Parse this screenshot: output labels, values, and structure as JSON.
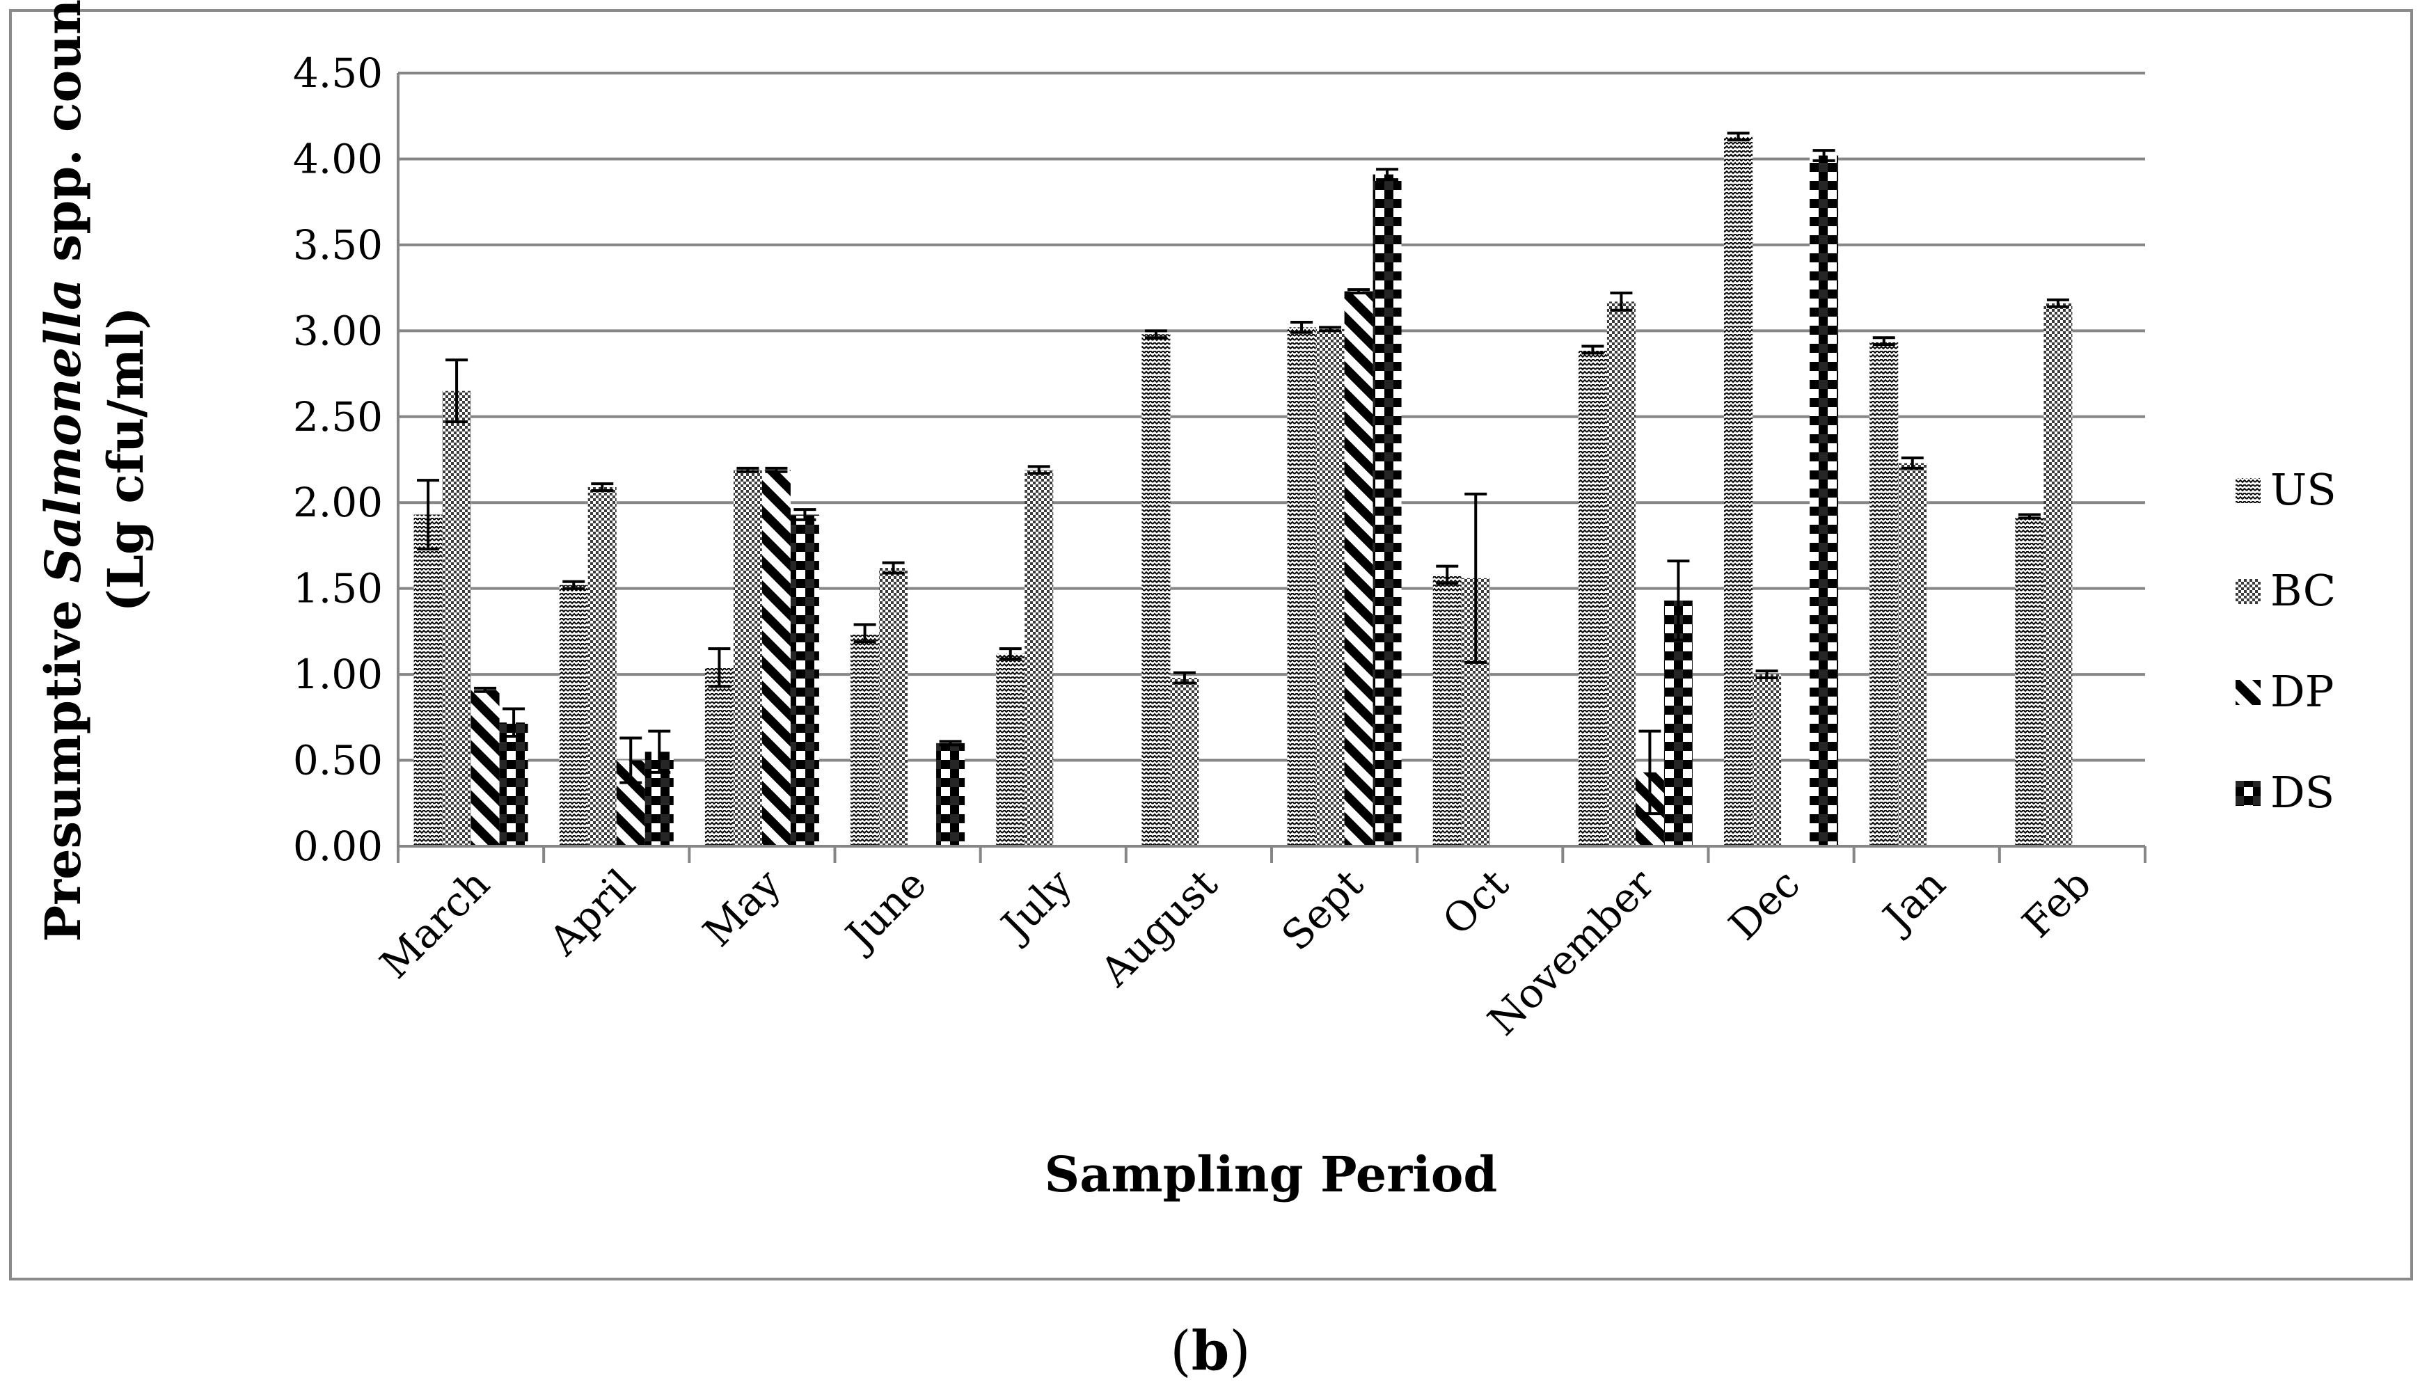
{
  "chart_data": {
    "type": "bar",
    "title": "",
    "xlabel": "Sampling Period",
    "ylabel_lines": [
      [
        "Presumptive ",
        "Salmonella",
        " spp. count"
      ],
      [
        "(Lg cfu/ml)"
      ]
    ],
    "ylim": [
      0,
      4.5
    ],
    "yticks": [
      "0.00",
      "0.50",
      "1.00",
      "1.50",
      "2.00",
      "2.50",
      "3.00",
      "3.50",
      "4.00",
      "4.50"
    ],
    "ytick_values": [
      0,
      0.5,
      1,
      1.5,
      2,
      2.5,
      3,
      3.5,
      4,
      4.5
    ],
    "categories": [
      "March",
      "April",
      "May",
      "June",
      "July",
      "August",
      "Sept",
      "Oct",
      "November",
      "Dec",
      "Jan",
      "Feb"
    ],
    "series": [
      {
        "name": "US",
        "pattern": "zigzag",
        "values": [
          1.93,
          1.52,
          1.04,
          1.24,
          1.12,
          2.98,
          3.02,
          1.58,
          2.89,
          4.13,
          2.94,
          1.92
        ],
        "errors": [
          0.2,
          0.02,
          0.11,
          0.05,
          0.03,
          0.02,
          0.03,
          0.05,
          0.02,
          0.02,
          0.02,
          0.01
        ]
      },
      {
        "name": "BC",
        "pattern": "checker",
        "values": [
          2.65,
          2.09,
          2.19,
          1.62,
          2.19,
          0.98,
          3.01,
          1.56,
          3.17,
          1.0,
          2.23,
          3.16
        ],
        "errors": [
          0.18,
          0.02,
          0.01,
          0.03,
          0.02,
          0.03,
          0.01,
          0.49,
          0.05,
          0.02,
          0.03,
          0.02
        ]
      },
      {
        "name": "DP",
        "pattern": "diagonal",
        "values": [
          0.91,
          0.5,
          2.19,
          0,
          0,
          0,
          3.23,
          0,
          0.43,
          0,
          0,
          0
        ],
        "errors": [
          0.01,
          0.13,
          0.01,
          0,
          0,
          0,
          0.01,
          0,
          0.24,
          0,
          0,
          0
        ]
      },
      {
        "name": "DS",
        "pattern": "blocks",
        "values": [
          0.72,
          0.55,
          1.93,
          0.6,
          0,
          0,
          3.91,
          0,
          1.43,
          4.02,
          0,
          0
        ],
        "errors": [
          0.08,
          0.12,
          0.03,
          0.01,
          0,
          0,
          0.03,
          0,
          0.23,
          0.03,
          0,
          0
        ]
      }
    ],
    "legend_position": "right",
    "grid": true,
    "caption": [
      "(",
      "b",
      ")"
    ]
  }
}
